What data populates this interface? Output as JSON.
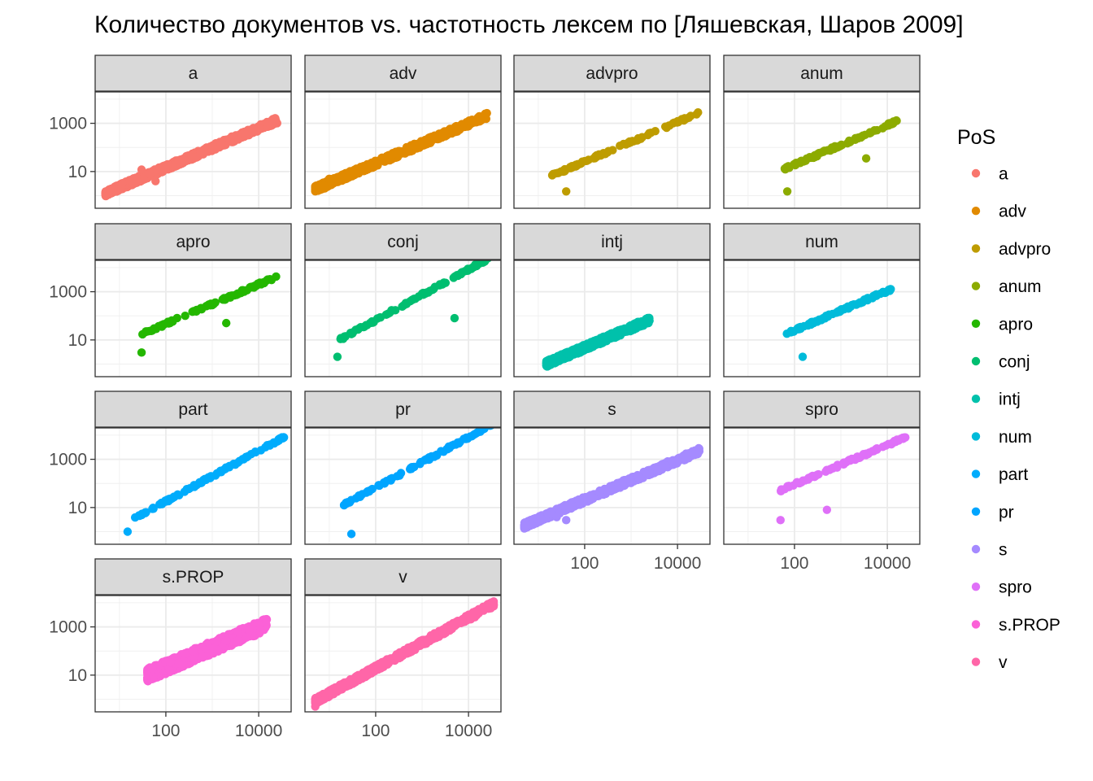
{
  "chart_data": {
    "type": "scatter",
    "title": "Количество документов  vs. частотность лексем по [Ляшевская, Шаров 2009]",
    "xlabel": "",
    "ylabel": "",
    "x_scale": "log10",
    "y_scale": "log10",
    "xlim": [
      3,
      50000
    ],
    "ylim": [
      0.3,
      20000
    ],
    "x_ticks": [
      100,
      10000
    ],
    "x_tick_labels": [
      "100",
      "10000"
    ],
    "y_ticks": [
      10,
      1000
    ],
    "y_tick_labels": [
      "10",
      "1000"
    ],
    "grid": true,
    "legend": {
      "title": "PoS",
      "position": "right"
    },
    "series": [
      {
        "name": "a",
        "color": "#F8766D",
        "x_min": 5,
        "x_max": 25000,
        "y_end": 1200,
        "points": [
          [
            30,
            12
          ],
          [
            45,
            8
          ],
          [
            60,
            4
          ],
          [
            20,
            3
          ]
        ]
      },
      {
        "name": "adv",
        "color": "#E18A00",
        "x_min": 5,
        "x_max": 25000,
        "y_end": 1800,
        "points": [
          [
            10,
            5
          ],
          [
            25,
            6
          ],
          [
            8,
            2
          ]
        ]
      },
      {
        "name": "advpro",
        "color": "#BE9C00",
        "x_min": 20,
        "x_max": 28000,
        "y_end": 2500,
        "points": [
          [
            40,
            1.5
          ]
        ]
      },
      {
        "name": "anum",
        "color": "#8CAB00",
        "x_min": 60,
        "x_max": 18000,
        "y_end": 1300,
        "points": [
          [
            70,
            1.5
          ],
          [
            3500,
            35
          ]
        ]
      },
      {
        "name": "apro",
        "color": "#24B700",
        "x_min": 30,
        "x_max": 28000,
        "y_end": 4500,
        "points": [
          [
            30,
            3
          ],
          [
            2000,
            50
          ]
        ]
      },
      {
        "name": "conj",
        "color": "#00BE70",
        "x_min": 15,
        "x_max": 35000,
        "y_end": 30000,
        "points": [
          [
            15,
            2
          ],
          [
            5000,
            80
          ]
        ]
      },
      {
        "name": "intj",
        "color": "#00C1AB",
        "x_min": 15,
        "x_max": 2500,
        "y_end": 60,
        "points": [
          [
            40,
            3
          ]
        ]
      },
      {
        "name": "num",
        "color": "#00BBDA",
        "x_min": 60,
        "x_max": 12000,
        "y_end": 1200,
        "points": [
          [
            150,
            2
          ]
        ]
      },
      {
        "name": "part",
        "color": "#00ACFC",
        "x_min": 15,
        "x_max": 35000,
        "y_end": 8000,
        "points": [
          [
            15,
            1
          ],
          [
            35000,
            8000
          ]
        ]
      },
      {
        "name": "pr",
        "color": "#00A5FF",
        "x_min": 15,
        "x_max": 35000,
        "y_end": 30000,
        "points": [
          [
            30,
            0.8
          ]
        ]
      },
      {
        "name": "s",
        "color": "#A58AFF",
        "x_min": 5,
        "x_max": 30000,
        "y_end": 2000,
        "points": [
          [
            20,
            5
          ],
          [
            25,
            4
          ],
          [
            40,
            3
          ]
        ]
      },
      {
        "name": "spro",
        "color": "#DF70F8",
        "x_min": 50,
        "x_max": 25000,
        "y_end": 8000,
        "points": [
          [
            50,
            3
          ],
          [
            500,
            8
          ]
        ]
      },
      {
        "name": "s.PROP",
        "color": "#FB61D7",
        "x_min": 40,
        "x_max": 15000,
        "y_end": 1000,
        "points": []
      },
      {
        "name": "v",
        "color": "#FF66A8",
        "x_min": 5,
        "x_max": 35000,
        "y_end": 8000,
        "points": [
          [
            5,
            0.5
          ],
          [
            35000,
            8000
          ]
        ]
      }
    ]
  }
}
